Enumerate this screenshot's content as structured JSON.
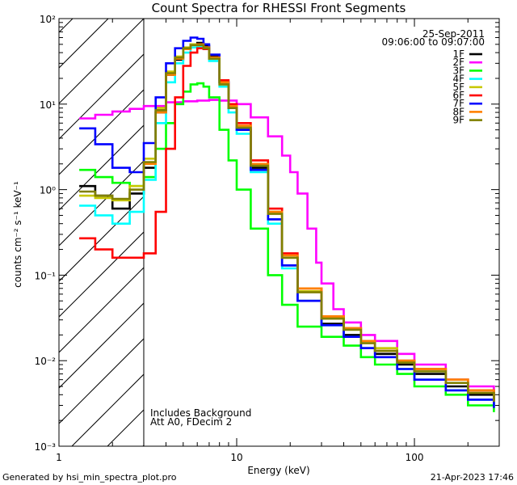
{
  "chart_data": {
    "type": "line",
    "title": "Count Spectra for RHESSI Front Segments",
    "xlabel": "Energy (keV)",
    "ylabel": "counts cm⁻² s⁻¹ keV⁻¹",
    "xscale": "log",
    "yscale": "log",
    "xlim": [
      1,
      300
    ],
    "ylim": [
      0.001,
      100
    ],
    "x_ticks": [
      {
        "value": 1,
        "label": "1"
      },
      {
        "value": 10,
        "label": "10"
      },
      {
        "value": 100,
        "label": "100"
      }
    ],
    "y_ticks": [
      {
        "value": 0.001,
        "label": "10⁻³"
      },
      {
        "value": 0.01,
        "label": "10⁻²"
      },
      {
        "value": 0.1,
        "label": "10⁻¹"
      },
      {
        "value": 1,
        "label": "10⁰"
      },
      {
        "value": 10,
        "label": "10¹"
      },
      {
        "value": 100,
        "label": "10²"
      }
    ],
    "date": "25-Sep-2011",
    "time_range": "09:06:00 to 09:07:00",
    "annotation_lines": [
      "Includes Background",
      "Att A0, FDecim 2"
    ],
    "shaded_region_keV": [
      1,
      3
    ],
    "legend_position": "top-right",
    "series": [
      {
        "name": "1F",
        "color": "#000000",
        "points": [
          [
            1.3,
            1.1
          ],
          [
            1.6,
            0.85
          ],
          [
            2.0,
            0.6
          ],
          [
            2.5,
            0.9
          ],
          [
            3.0,
            1.8
          ],
          [
            3.5,
            8
          ],
          [
            4.0,
            22
          ],
          [
            4.5,
            33
          ],
          [
            5.0,
            45
          ],
          [
            5.5,
            50
          ],
          [
            6.0,
            52
          ],
          [
            6.5,
            48
          ],
          [
            7.0,
            36
          ],
          [
            8.0,
            18
          ],
          [
            9.0,
            9
          ],
          [
            10.0,
            5
          ],
          [
            12.0,
            1.8
          ],
          [
            15.0,
            0.45
          ],
          [
            18.0,
            0.13
          ],
          [
            22.0,
            0.05
          ],
          [
            30.0,
            0.027
          ],
          [
            40.0,
            0.02
          ],
          [
            50.0,
            0.014
          ],
          [
            60.0,
            0.012
          ],
          [
            80.0,
            0.009
          ],
          [
            100.0,
            0.007
          ],
          [
            150.0,
            0.005
          ],
          [
            200.0,
            0.004
          ],
          [
            280.0,
            0.003
          ]
        ]
      },
      {
        "name": "2F",
        "color": "#ff00ff",
        "points": [
          [
            1.3,
            6.8
          ],
          [
            1.6,
            7.5
          ],
          [
            2.0,
            8.2
          ],
          [
            2.5,
            8.8
          ],
          [
            3.0,
            9.5
          ],
          [
            4.0,
            10.5
          ],
          [
            5.0,
            10.8
          ],
          [
            6.0,
            11
          ],
          [
            7.0,
            11.2
          ],
          [
            8.0,
            11
          ],
          [
            10.0,
            10
          ],
          [
            12.0,
            7
          ],
          [
            15.0,
            4.2
          ],
          [
            18.0,
            2.5
          ],
          [
            20.0,
            1.6
          ],
          [
            22.0,
            0.9
          ],
          [
            25.0,
            0.35
          ],
          [
            28.0,
            0.14
          ],
          [
            30.0,
            0.08
          ],
          [
            35.0,
            0.04
          ],
          [
            40.0,
            0.028
          ],
          [
            50.0,
            0.02
          ],
          [
            60.0,
            0.017
          ],
          [
            80.0,
            0.012
          ],
          [
            100.0,
            0.009
          ],
          [
            150.0,
            0.006
          ],
          [
            200.0,
            0.005
          ],
          [
            280.0,
            0.004
          ]
        ]
      },
      {
        "name": "3F",
        "color": "#00ff00",
        "points": [
          [
            1.3,
            1.7
          ],
          [
            1.6,
            1.4
          ],
          [
            2.0,
            1.2
          ],
          [
            2.5,
            1.1
          ],
          [
            3.0,
            1.4
          ],
          [
            3.5,
            3
          ],
          [
            4.0,
            6
          ],
          [
            4.5,
            10
          ],
          [
            5.0,
            14
          ],
          [
            5.5,
            17
          ],
          [
            6.0,
            17.5
          ],
          [
            6.5,
            16
          ],
          [
            7.0,
            12
          ],
          [
            8.0,
            5
          ],
          [
            9.0,
            2.2
          ],
          [
            10.0,
            1
          ],
          [
            12.0,
            0.35
          ],
          [
            15.0,
            0.1
          ],
          [
            18.0,
            0.045
          ],
          [
            22.0,
            0.025
          ],
          [
            30.0,
            0.019
          ],
          [
            40.0,
            0.015
          ],
          [
            50.0,
            0.011
          ],
          [
            60.0,
            0.009
          ],
          [
            80.0,
            0.007
          ],
          [
            100.0,
            0.005
          ],
          [
            150.0,
            0.004
          ],
          [
            200.0,
            0.003
          ],
          [
            280.0,
            0.0025
          ]
        ]
      },
      {
        "name": "4F",
        "color": "#00ffff",
        "points": [
          [
            1.3,
            0.65
          ],
          [
            1.6,
            0.5
          ],
          [
            2.0,
            0.4
          ],
          [
            2.5,
            0.55
          ],
          [
            3.0,
            1.3
          ],
          [
            3.5,
            6
          ],
          [
            4.0,
            18
          ],
          [
            4.5,
            30
          ],
          [
            5.0,
            40
          ],
          [
            5.5,
            46
          ],
          [
            6.0,
            47
          ],
          [
            6.5,
            44
          ],
          [
            7.0,
            32
          ],
          [
            8.0,
            16
          ],
          [
            9.0,
            8
          ],
          [
            10.0,
            4.5
          ],
          [
            12.0,
            1.6
          ],
          [
            15.0,
            0.4
          ],
          [
            18.0,
            0.12
          ],
          [
            22.0,
            0.05
          ],
          [
            30.0,
            0.026
          ],
          [
            40.0,
            0.019
          ],
          [
            50.0,
            0.014
          ],
          [
            60.0,
            0.011
          ],
          [
            80.0,
            0.008
          ],
          [
            100.0,
            0.006
          ],
          [
            150.0,
            0.0045
          ],
          [
            200.0,
            0.0035
          ],
          [
            280.0,
            0.003
          ]
        ]
      },
      {
        "name": "5F",
        "color": "#c8c800",
        "points": [
          [
            1.3,
            0.85
          ],
          [
            1.6,
            0.8
          ],
          [
            2.0,
            0.75
          ],
          [
            2.5,
            1.1
          ],
          [
            3.0,
            2.3
          ],
          [
            3.5,
            9
          ],
          [
            4.0,
            24
          ],
          [
            4.5,
            36
          ],
          [
            5.0,
            46
          ],
          [
            5.5,
            50
          ],
          [
            6.0,
            50
          ],
          [
            6.5,
            46
          ],
          [
            7.0,
            34
          ],
          [
            8.0,
            17
          ],
          [
            9.0,
            9
          ],
          [
            10.0,
            5.5
          ],
          [
            12.0,
            2
          ],
          [
            15.0,
            0.55
          ],
          [
            18.0,
            0.16
          ],
          [
            22.0,
            0.065
          ],
          [
            30.0,
            0.032
          ],
          [
            40.0,
            0.024
          ],
          [
            50.0,
            0.017
          ],
          [
            60.0,
            0.014
          ],
          [
            80.0,
            0.01
          ],
          [
            100.0,
            0.008
          ],
          [
            150.0,
            0.006
          ],
          [
            200.0,
            0.0045
          ],
          [
            280.0,
            0.0035
          ]
        ]
      },
      {
        "name": "6F",
        "color": "#ff0000",
        "points": [
          [
            1.3,
            0.27
          ],
          [
            1.6,
            0.2
          ],
          [
            2.0,
            0.16
          ],
          [
            2.5,
            0.16
          ],
          [
            3.0,
            0.18
          ],
          [
            3.5,
            0.55
          ],
          [
            4.0,
            3
          ],
          [
            4.5,
            12
          ],
          [
            5.0,
            28
          ],
          [
            5.5,
            40
          ],
          [
            6.0,
            45
          ],
          [
            6.5,
            44
          ],
          [
            7.0,
            35
          ],
          [
            8.0,
            19
          ],
          [
            9.0,
            10
          ],
          [
            10.0,
            6
          ],
          [
            12.0,
            2.2
          ],
          [
            15.0,
            0.6
          ],
          [
            18.0,
            0.18
          ],
          [
            22.0,
            0.07
          ],
          [
            30.0,
            0.033
          ],
          [
            40.0,
            0.024
          ],
          [
            50.0,
            0.017
          ],
          [
            60.0,
            0.013
          ],
          [
            80.0,
            0.01
          ],
          [
            100.0,
            0.008
          ],
          [
            150.0,
            0.006
          ],
          [
            200.0,
            0.0045
          ],
          [
            280.0,
            0.0035
          ]
        ]
      },
      {
        "name": "7F",
        "color": "#0000ff",
        "points": [
          [
            1.3,
            5.2
          ],
          [
            1.6,
            3.4
          ],
          [
            2.0,
            1.8
          ],
          [
            2.5,
            1.6
          ],
          [
            3.0,
            3.5
          ],
          [
            3.5,
            12
          ],
          [
            4.0,
            30
          ],
          [
            4.5,
            45
          ],
          [
            5.0,
            55
          ],
          [
            5.5,
            60
          ],
          [
            6.0,
            58
          ],
          [
            6.5,
            50
          ],
          [
            7.0,
            38
          ],
          [
            8.0,
            18
          ],
          [
            9.0,
            9
          ],
          [
            10.0,
            5
          ],
          [
            12.0,
            1.7
          ],
          [
            15.0,
            0.45
          ],
          [
            18.0,
            0.13
          ],
          [
            22.0,
            0.05
          ],
          [
            30.0,
            0.026
          ],
          [
            40.0,
            0.019
          ],
          [
            50.0,
            0.014
          ],
          [
            60.0,
            0.011
          ],
          [
            80.0,
            0.008
          ],
          [
            100.0,
            0.006
          ],
          [
            150.0,
            0.0045
          ],
          [
            200.0,
            0.0035
          ],
          [
            280.0,
            0.0028
          ]
        ]
      },
      {
        "name": "8F",
        "color": "#ff8000",
        "points": [
          [
            3.0,
            2
          ],
          [
            3.5,
            8
          ],
          [
            4.0,
            22
          ],
          [
            4.5,
            34
          ],
          [
            5.0,
            44
          ],
          [
            5.5,
            49
          ],
          [
            6.0,
            50
          ],
          [
            6.5,
            46
          ],
          [
            7.0,
            35
          ],
          [
            8.0,
            18
          ],
          [
            9.0,
            9.5
          ],
          [
            10.0,
            5.6
          ],
          [
            12.0,
            2
          ],
          [
            15.0,
            0.55
          ],
          [
            18.0,
            0.17
          ],
          [
            22.0,
            0.07
          ],
          [
            30.0,
            0.033
          ],
          [
            40.0,
            0.024
          ],
          [
            50.0,
            0.017
          ],
          [
            60.0,
            0.013
          ],
          [
            80.0,
            0.01
          ],
          [
            100.0,
            0.008
          ],
          [
            150.0,
            0.006
          ],
          [
            200.0,
            0.0045
          ],
          [
            280.0,
            0.0035
          ]
        ]
      },
      {
        "name": "9F",
        "color": "#808000",
        "points": [
          [
            1.3,
            0.95
          ],
          [
            1.6,
            0.85
          ],
          [
            2.0,
            0.78
          ],
          [
            2.5,
            1
          ],
          [
            3.0,
            2.1
          ],
          [
            3.5,
            8.5
          ],
          [
            4.0,
            23
          ],
          [
            4.5,
            35
          ],
          [
            5.0,
            45
          ],
          [
            5.5,
            49
          ],
          [
            6.0,
            49
          ],
          [
            6.5,
            45
          ],
          [
            7.0,
            34
          ],
          [
            8.0,
            17
          ],
          [
            9.0,
            9
          ],
          [
            10.0,
            5.3
          ],
          [
            12.0,
            1.9
          ],
          [
            15.0,
            0.52
          ],
          [
            18.0,
            0.16
          ],
          [
            22.0,
            0.063
          ],
          [
            30.0,
            0.031
          ],
          [
            40.0,
            0.023
          ],
          [
            50.0,
            0.016
          ],
          [
            60.0,
            0.013
          ],
          [
            80.0,
            0.0095
          ],
          [
            100.0,
            0.0075
          ],
          [
            150.0,
            0.0055
          ],
          [
            200.0,
            0.0042
          ],
          [
            280.0,
            0.0033
          ]
        ]
      }
    ]
  },
  "footer": {
    "generated_by": "Generated by hsi_min_spectra_plot.pro",
    "timestamp": "21-Apr-2023 17:46"
  },
  "colors": {
    "background": "#ffffff",
    "axes": "#000000"
  }
}
